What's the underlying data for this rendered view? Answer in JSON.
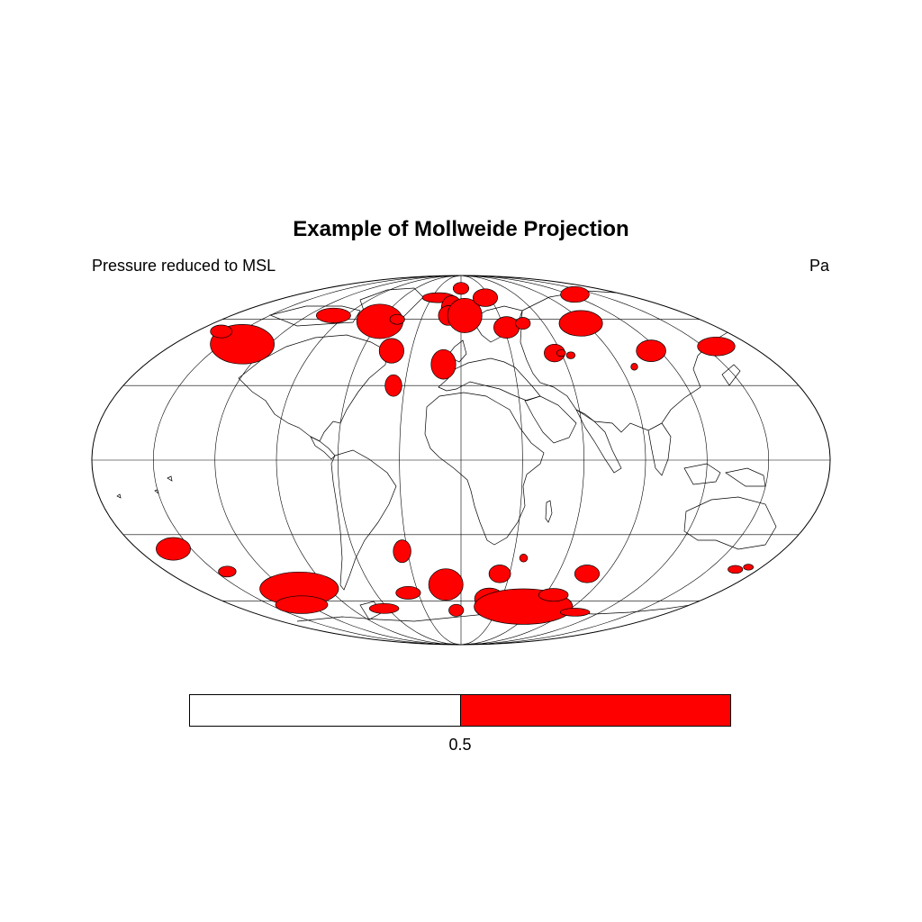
{
  "title": "Example of Mollweide Projection",
  "subtitle_left": "Pressure reduced to MSL",
  "subtitle_right": "Pa",
  "colors": {
    "fill": "#ff0000",
    "outline": "#000000",
    "background": "#ffffff"
  },
  "colorbar": {
    "boxes": [
      "#ffffff",
      "#ff0000"
    ],
    "labels": [
      "0.5"
    ]
  },
  "chart_data": {
    "type": "map",
    "projection": "mollweide",
    "center_lon": 0,
    "graticule": {
      "lon_spacing_deg": 30,
      "lat_spacing_deg": 30
    },
    "markers_note": "Red ellipses indicate locations above the 0.5 threshold",
    "markers": [
      {
        "lon": -137,
        "lat": 48,
        "rx": 6.5,
        "ry": 4
      },
      {
        "lon": -163,
        "lat": 54,
        "rx": 2.2,
        "ry": 1.3
      },
      {
        "lon": -100,
        "lat": 62,
        "rx": 3.5,
        "ry": 1.5
      },
      {
        "lon": -60,
        "lat": 59,
        "rx": 4.7,
        "ry": 3.5
      },
      {
        "lon": -48,
        "lat": 60,
        "rx": 1.5,
        "ry": 1
      },
      {
        "lon": -23,
        "lat": 72,
        "rx": 3.3,
        "ry": 1
      },
      {
        "lon": -42,
        "lat": 45,
        "rx": 2.5,
        "ry": 2.5
      },
      {
        "lon": -36,
        "lat": 30,
        "rx": 1.7,
        "ry": 2.2
      },
      {
        "lon": -10,
        "lat": 39,
        "rx": 2.5,
        "ry": 3
      },
      {
        "lon": -8,
        "lat": 66,
        "rx": 2.1,
        "ry": 2.5
      },
      {
        "lon": 0,
        "lat": 78,
        "rx": 1.6,
        "ry": 1.2
      },
      {
        "lon": -10,
        "lat": 62,
        "rx": 2,
        "ry": 2
      },
      {
        "lon": 3,
        "lat": 62,
        "rx": 3.5,
        "ry": 3.5
      },
      {
        "lon": 25,
        "lat": 72,
        "rx": 2.5,
        "ry": 1.8
      },
      {
        "lon": 32,
        "lat": 56,
        "rx": 2.6,
        "ry": 2.2
      },
      {
        "lon": 45,
        "lat": 58,
        "rx": 1.5,
        "ry": 1.2
      },
      {
        "lon": 56,
        "lat": 44,
        "rx": 2.1,
        "ry": 1.8
      },
      {
        "lon": 60,
        "lat": 44,
        "rx": 0.9,
        "ry": 0.7
      },
      {
        "lon": 65,
        "lat": 43,
        "rx": 0.9,
        "ry": 0.7
      },
      {
        "lon": 87,
        "lat": 58,
        "rx": 4.4,
        "ry": 2.6
      },
      {
        "lon": 126,
        "lat": 74,
        "rx": 2.9,
        "ry": 1.6
      },
      {
        "lon": 115,
        "lat": 45,
        "rx": 3,
        "ry": 2.2
      },
      {
        "lon": 98,
        "lat": 38,
        "rx": 0.7,
        "ry": 0.7
      },
      {
        "lon": 158,
        "lat": 47,
        "rx": 3.8,
        "ry": 1.9
      },
      {
        "lon": -160,
        "lat": -36,
        "rx": 3.5,
        "ry": 2.3
      },
      {
        "lon": -143,
        "lat": -46,
        "rx": 1.8,
        "ry": 1.1
      },
      {
        "lon": -110,
        "lat": -54,
        "rx": 8,
        "ry": 3.4
      },
      {
        "lon": -125,
        "lat": -62,
        "rx": 5.3,
        "ry": 1.8
      },
      {
        "lon": -63,
        "lat": -64,
        "rx": 3,
        "ry": 1
      },
      {
        "lon": -33,
        "lat": -37,
        "rx": 1.8,
        "ry": 2.3
      },
      {
        "lon": -37,
        "lat": -56,
        "rx": 2.5,
        "ry": 1.3
      },
      {
        "lon": -10,
        "lat": -52,
        "rx": 3.5,
        "ry": 3.2
      },
      {
        "lon": -4,
        "lat": -65,
        "rx": 1.5,
        "ry": 1.2
      },
      {
        "lon": 24,
        "lat": -47,
        "rx": 2.2,
        "ry": 1.8
      },
      {
        "lon": 21,
        "lat": -59,
        "rx": 3,
        "ry": 2.2
      },
      {
        "lon": 36,
        "lat": -40,
        "rx": 0.8,
        "ry": 0.8
      },
      {
        "lon": 50,
        "lat": -63,
        "rx": 10,
        "ry": 3.6
      },
      {
        "lon": 66,
        "lat": -57,
        "rx": 3,
        "ry": 1.3
      },
      {
        "lon": 78,
        "lat": -47,
        "rx": 2.5,
        "ry": 1.8
      },
      {
        "lon": 98,
        "lat": -66,
        "rx": 3,
        "ry": 0.8
      },
      {
        "lon": 166,
        "lat": -45,
        "rx": 1.5,
        "ry": 0.8
      },
      {
        "lon": 172,
        "lat": -44,
        "rx": 1,
        "ry": 0.6
      }
    ]
  }
}
